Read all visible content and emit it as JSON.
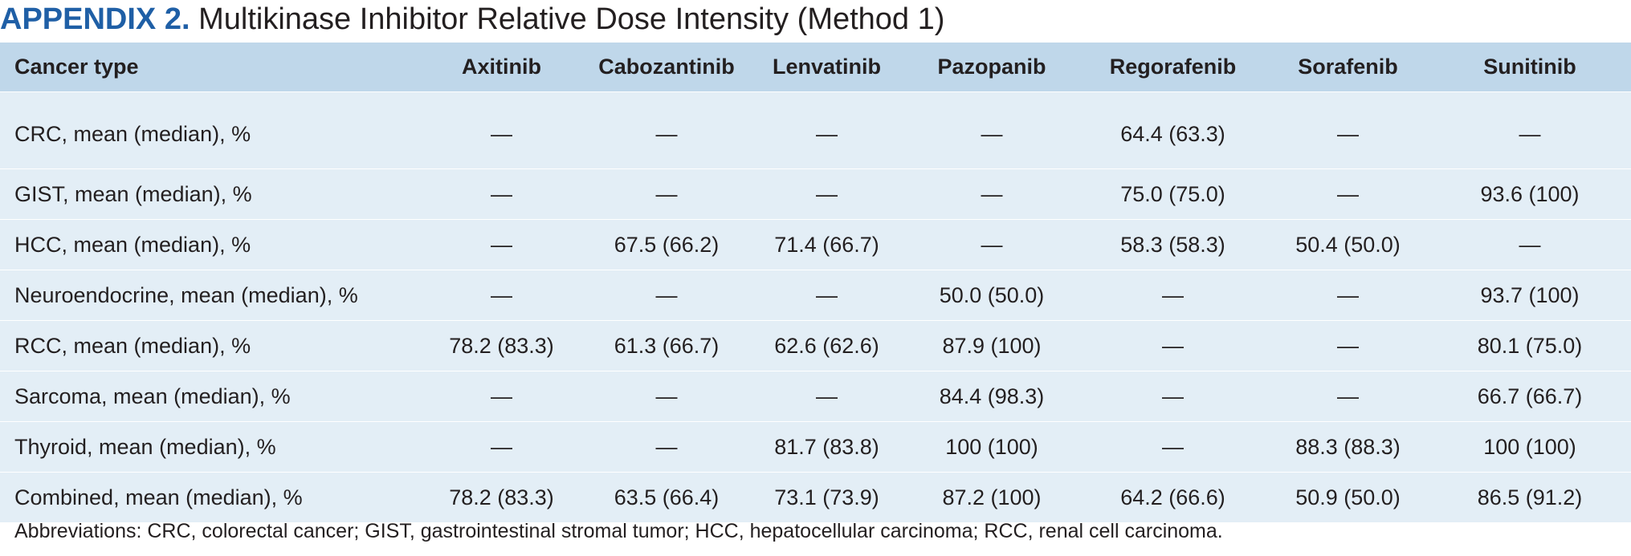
{
  "title": {
    "label": "APPENDIX 2.",
    "text": "Multikinase Inhibitor Relative Dose Intensity (Method 1)"
  },
  "table": {
    "headers": [
      "Cancer type",
      "Axitinib",
      "Cabozantinib",
      "Lenvatinib",
      "Pazopanib",
      "Regorafenib",
      "Sorafenib",
      "Sunitinib"
    ],
    "rows": [
      [
        "CRC, mean (median), %",
        "—",
        "—",
        "—",
        "—",
        "64.4 (63.3)",
        "—",
        "—"
      ],
      [
        "GIST, mean (median), %",
        "—",
        "—",
        "—",
        "—",
        "75.0 (75.0)",
        "—",
        "93.6 (100)"
      ],
      [
        "HCC, mean (median), %",
        "—",
        "67.5 (66.2)",
        "71.4 (66.7)",
        "—",
        "58.3 (58.3)",
        "50.4 (50.0)",
        "—"
      ],
      [
        "Neuroendocrine, mean (median), %",
        "—",
        "—",
        "—",
        "50.0 (50.0)",
        "—",
        "—",
        "93.7 (100)"
      ],
      [
        "RCC, mean (median), %",
        "78.2 (83.3)",
        "61.3 (66.7)",
        "62.6 (62.6)",
        "87.9 (100)",
        "—",
        "—",
        "80.1 (75.0)"
      ],
      [
        "Sarcoma, mean (median), %",
        "—",
        "—",
        "—",
        "84.4 (98.3)",
        "—",
        "—",
        "66.7 (66.7)"
      ],
      [
        "Thyroid, mean (median), %",
        "—",
        "—",
        "81.7 (83.8)",
        "100 (100)",
        "—",
        "88.3 (88.3)",
        "100 (100)"
      ],
      [
        "Combined, mean (median), %",
        "78.2 (83.3)",
        "63.5 (66.4)",
        "73.1 (73.9)",
        "87.2 (100)",
        "64.2 (66.6)",
        "50.9 (50.0)",
        "86.5 (91.2)"
      ]
    ]
  },
  "footnote": "Abbreviations: CRC, colorectal cancer; GIST, gastrointestinal stromal tumor; HCC, hepatocellular carcinoma; RCC, renal cell carcinoma.",
  "colors": {
    "title_label": "#1f5fa6",
    "header_bg": "#bfd7ea",
    "body_bg": "#e3eef6"
  }
}
